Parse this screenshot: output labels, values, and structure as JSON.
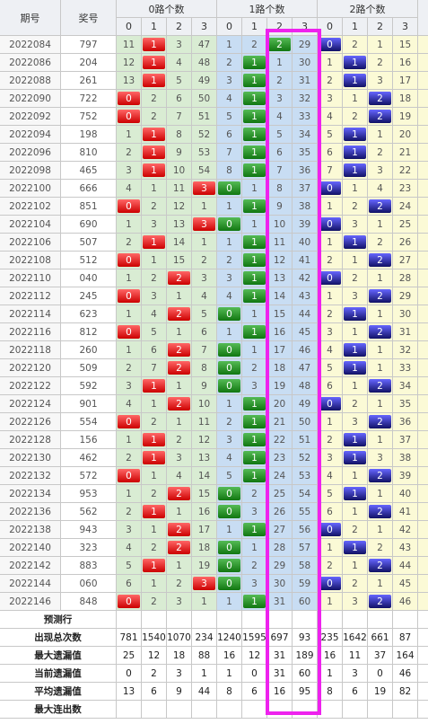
{
  "table": {
    "headers": {
      "period": "期号",
      "number": "奖号",
      "groups": [
        "0路个数",
        "1路个数",
        "2路个数"
      ],
      "sub": [
        0,
        1,
        2,
        3
      ]
    },
    "rows": [
      {
        "period": "2022084",
        "number": "797",
        "cells": [
          11,
          1,
          3,
          47,
          1,
          2,
          2,
          29,
          0,
          2,
          1,
          15
        ]
      },
      {
        "period": "2022086",
        "number": "204",
        "cells": [
          12,
          1,
          4,
          48,
          2,
          1,
          1,
          30,
          1,
          1,
          2,
          16
        ]
      },
      {
        "period": "2022088",
        "number": "261",
        "cells": [
          13,
          1,
          5,
          49,
          3,
          1,
          2,
          31,
          2,
          1,
          3,
          17
        ]
      },
      {
        "period": "2022090",
        "number": "722",
        "cells": [
          0,
          2,
          6,
          50,
          4,
          1,
          3,
          32,
          3,
          1,
          2,
          18
        ]
      },
      {
        "period": "2022092",
        "number": "752",
        "cells": [
          0,
          2,
          7,
          51,
          5,
          1,
          4,
          33,
          4,
          2,
          2,
          19
        ]
      },
      {
        "period": "2022094",
        "number": "198",
        "cells": [
          1,
          1,
          8,
          52,
          6,
          1,
          5,
          34,
          5,
          1,
          1,
          20
        ]
      },
      {
        "period": "2022096",
        "number": "810",
        "cells": [
          2,
          1,
          9,
          53,
          7,
          1,
          6,
          35,
          6,
          1,
          2,
          21
        ]
      },
      {
        "period": "2022098",
        "number": "465",
        "cells": [
          3,
          1,
          10,
          54,
          8,
          1,
          7,
          36,
          7,
          1,
          3,
          22
        ]
      },
      {
        "period": "2022100",
        "number": "666",
        "cells": [
          4,
          1,
          11,
          3,
          0,
          1,
          8,
          37,
          0,
          1,
          4,
          23
        ]
      },
      {
        "period": "2022102",
        "number": "851",
        "cells": [
          0,
          2,
          12,
          1,
          1,
          1,
          9,
          38,
          1,
          2,
          2,
          24
        ]
      },
      {
        "period": "2022104",
        "number": "690",
        "cells": [
          1,
          3,
          13,
          3,
          0,
          1,
          10,
          39,
          0,
          3,
          1,
          25
        ]
      },
      {
        "period": "2022106",
        "number": "507",
        "cells": [
          2,
          1,
          14,
          1,
          1,
          1,
          11,
          40,
          1,
          1,
          2,
          26
        ]
      },
      {
        "period": "2022108",
        "number": "512",
        "cells": [
          0,
          1,
          15,
          2,
          2,
          1,
          12,
          41,
          2,
          1,
          2,
          27
        ]
      },
      {
        "period": "2022110",
        "number": "040",
        "cells": [
          1,
          2,
          2,
          3,
          3,
          1,
          13,
          42,
          0,
          2,
          1,
          28
        ]
      },
      {
        "period": "2022112",
        "number": "245",
        "cells": [
          0,
          3,
          1,
          4,
          4,
          1,
          14,
          43,
          1,
          3,
          2,
          29
        ]
      },
      {
        "period": "2022114",
        "number": "623",
        "cells": [
          1,
          4,
          2,
          5,
          0,
          1,
          15,
          44,
          2,
          1,
          1,
          30
        ]
      },
      {
        "period": "2022116",
        "number": "812",
        "cells": [
          0,
          5,
          1,
          6,
          1,
          1,
          16,
          45,
          3,
          1,
          2,
          31
        ]
      },
      {
        "period": "2022118",
        "number": "260",
        "cells": [
          1,
          6,
          2,
          7,
          0,
          1,
          17,
          46,
          4,
          1,
          1,
          32
        ]
      },
      {
        "period": "2022120",
        "number": "509",
        "cells": [
          2,
          7,
          2,
          8,
          0,
          2,
          18,
          47,
          5,
          1,
          1,
          33
        ]
      },
      {
        "period": "2022122",
        "number": "592",
        "cells": [
          3,
          1,
          1,
          9,
          0,
          3,
          19,
          48,
          6,
          1,
          2,
          34
        ]
      },
      {
        "period": "2022124",
        "number": "901",
        "cells": [
          4,
          1,
          2,
          10,
          1,
          1,
          20,
          49,
          0,
          2,
          1,
          35
        ]
      },
      {
        "period": "2022126",
        "number": "554",
        "cells": [
          0,
          2,
          1,
          11,
          2,
          1,
          21,
          50,
          1,
          3,
          2,
          36
        ]
      },
      {
        "period": "2022128",
        "number": "156",
        "cells": [
          1,
          1,
          2,
          12,
          3,
          1,
          22,
          51,
          2,
          1,
          1,
          37
        ]
      },
      {
        "period": "2022130",
        "number": "462",
        "cells": [
          2,
          1,
          3,
          13,
          4,
          1,
          23,
          52,
          3,
          1,
          3,
          38
        ]
      },
      {
        "period": "2022132",
        "number": "572",
        "cells": [
          0,
          1,
          4,
          14,
          5,
          1,
          24,
          53,
          4,
          1,
          2,
          39
        ]
      },
      {
        "period": "2022134",
        "number": "953",
        "cells": [
          1,
          2,
          2,
          15,
          0,
          2,
          25,
          54,
          5,
          1,
          1,
          40
        ]
      },
      {
        "period": "2022136",
        "number": "562",
        "cells": [
          2,
          1,
          1,
          16,
          0,
          3,
          26,
          55,
          6,
          1,
          2,
          41
        ]
      },
      {
        "period": "2022138",
        "number": "943",
        "cells": [
          3,
          1,
          2,
          17,
          1,
          1,
          27,
          56,
          0,
          2,
          1,
          42
        ]
      },
      {
        "period": "2022140",
        "number": "323",
        "cells": [
          4,
          2,
          2,
          18,
          0,
          1,
          28,
          57,
          1,
          1,
          2,
          43
        ]
      },
      {
        "period": "2022142",
        "number": "883",
        "cells": [
          5,
          1,
          1,
          19,
          0,
          2,
          29,
          58,
          2,
          1,
          2,
          44
        ]
      },
      {
        "period": "2022144",
        "number": "060",
        "cells": [
          6,
          1,
          2,
          3,
          0,
          3,
          30,
          59,
          0,
          2,
          1,
          45
        ]
      },
      {
        "period": "2022146",
        "number": "848",
        "cells": [
          0,
          2,
          3,
          1,
          1,
          1,
          31,
          60,
          1,
          3,
          2,
          46
        ]
      }
    ],
    "stats": [
      {
        "label": "预测行",
        "values": []
      },
      {
        "label": "出现总次数",
        "values": [
          781,
          1540,
          1070,
          234,
          1240,
          1595,
          697,
          93,
          235,
          1642,
          661,
          87
        ]
      },
      {
        "label": "最大遗漏值",
        "values": [
          25,
          12,
          18,
          88,
          16,
          12,
          31,
          189,
          16,
          11,
          37,
          164
        ]
      },
      {
        "label": "当前遗漏值",
        "values": [
          0,
          2,
          3,
          1,
          1,
          0,
          31,
          60,
          1,
          3,
          0,
          46
        ]
      },
      {
        "label": "平均遗漏值",
        "values": [
          13,
          6,
          9,
          44,
          8,
          6,
          16,
          95,
          8,
          6,
          19,
          82
        ]
      },
      {
        "label": "最大连出数",
        "values": []
      }
    ]
  }
}
